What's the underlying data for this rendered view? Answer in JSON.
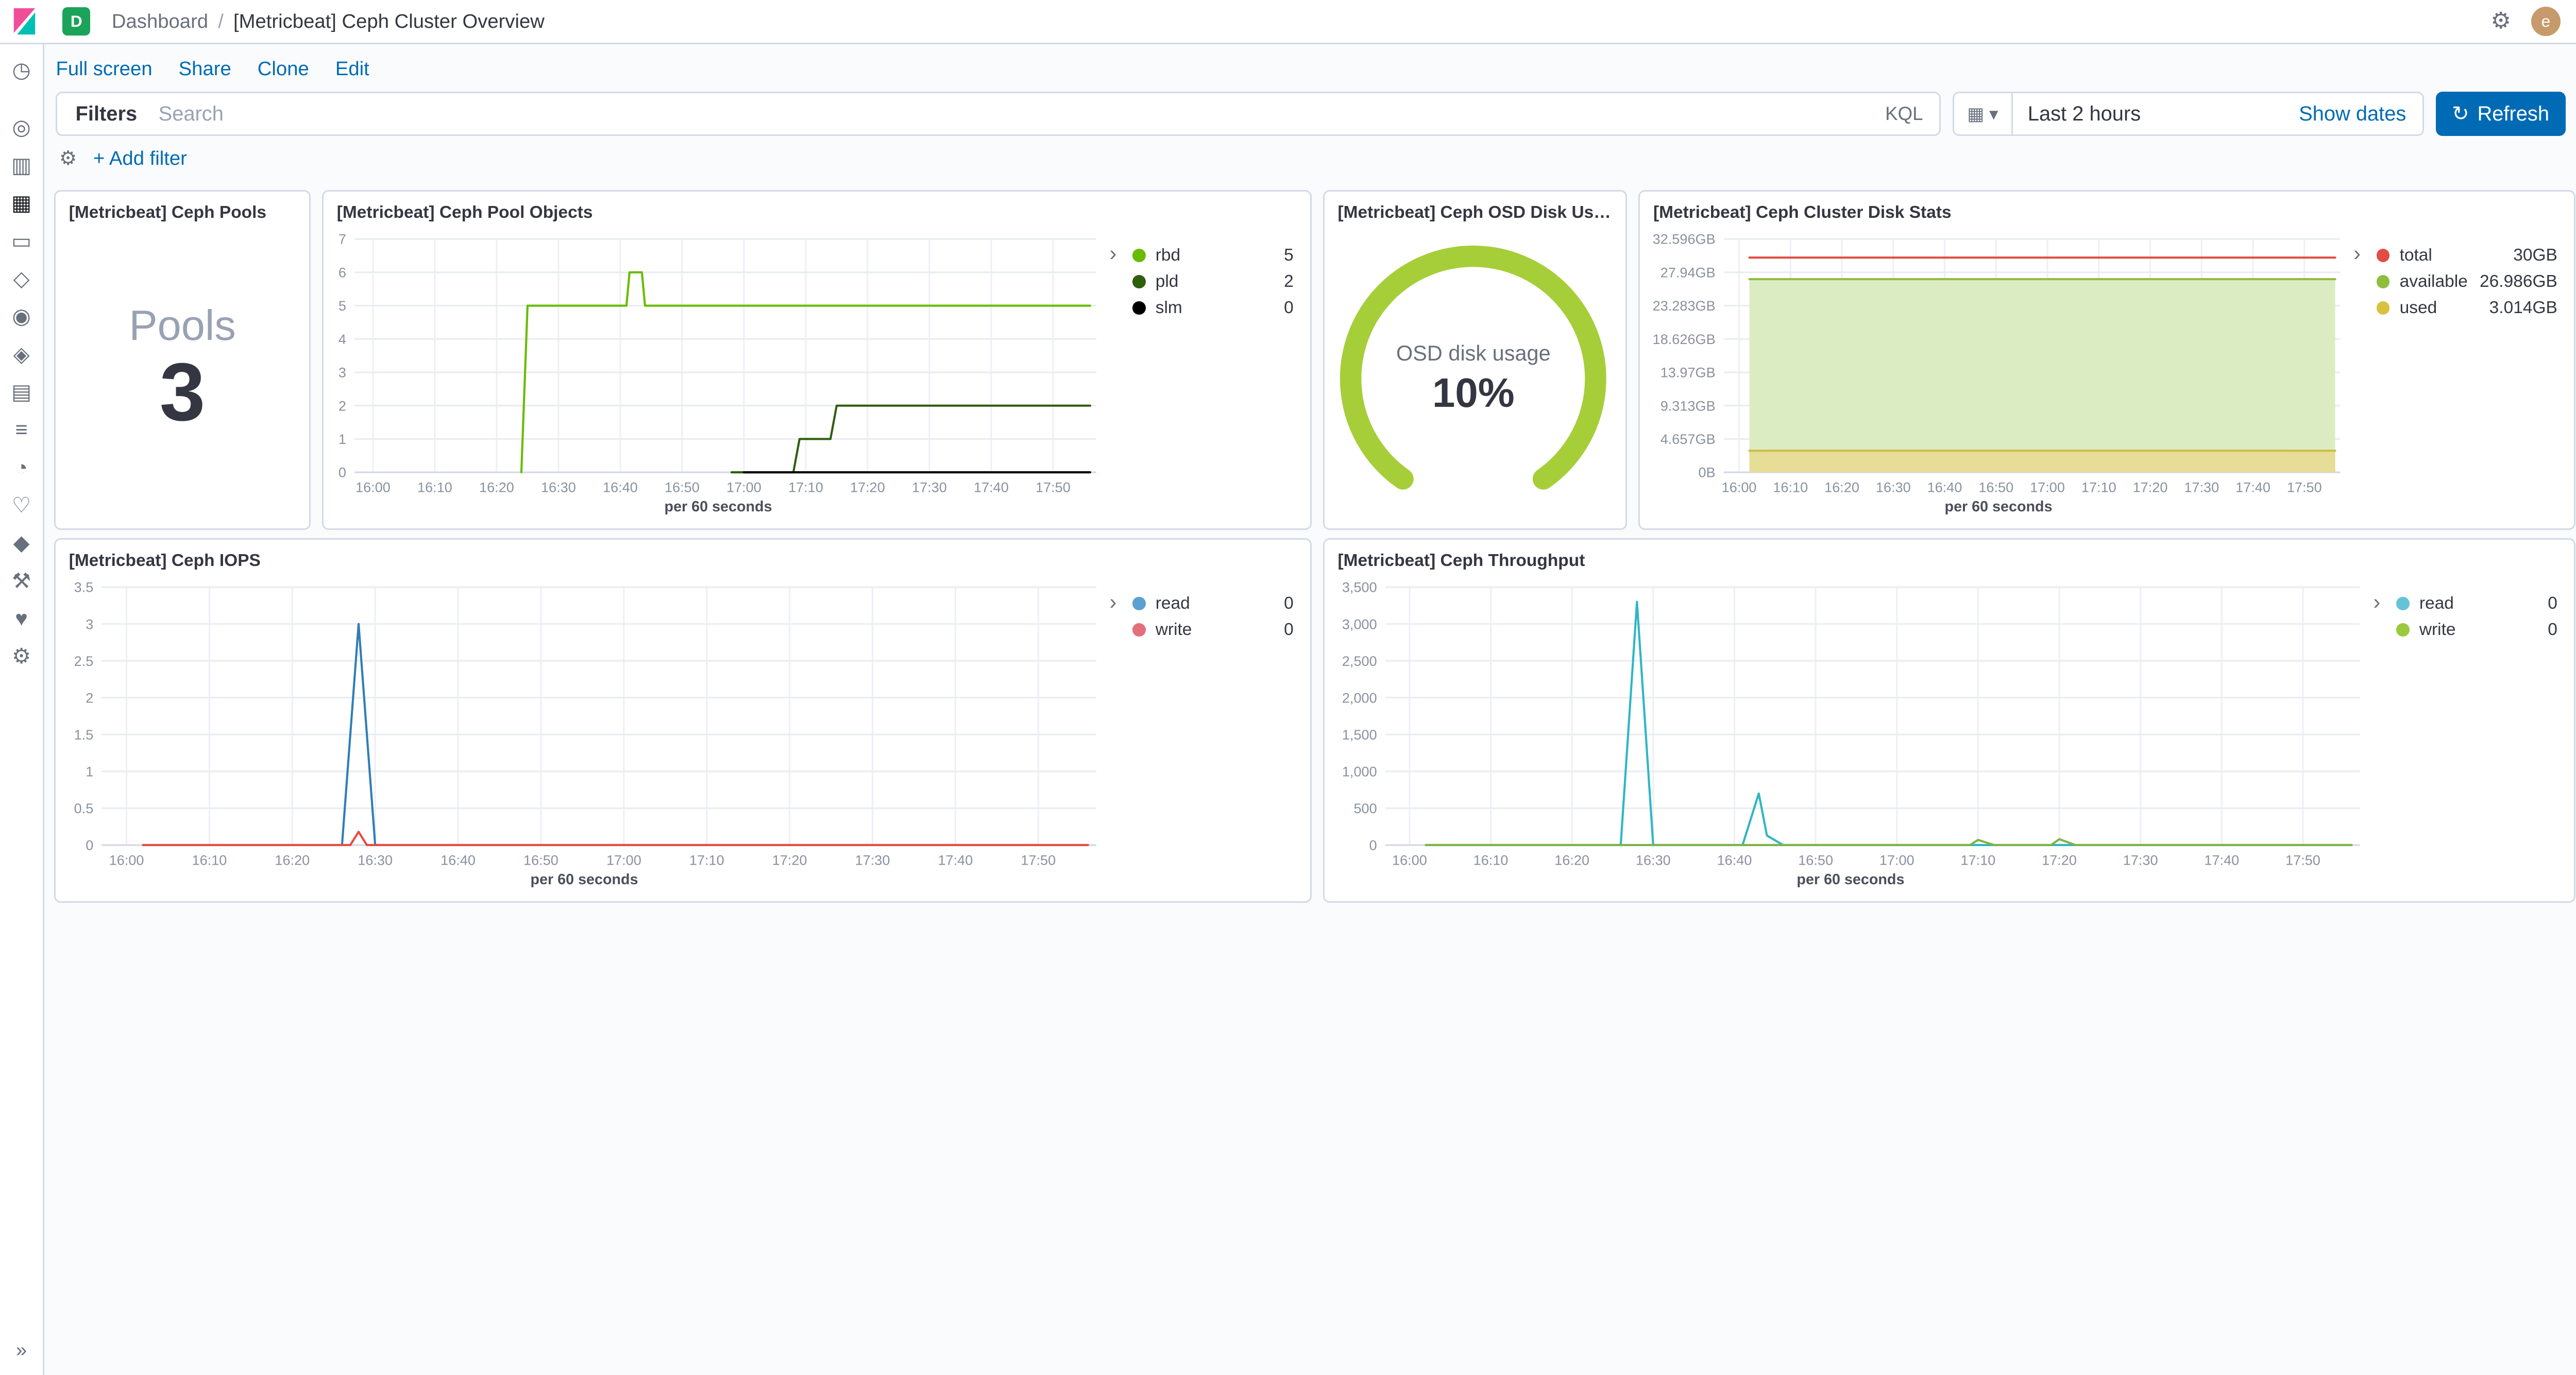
{
  "header": {
    "space_badge": "D",
    "breadcrumb": "Dashboard",
    "separator": "/",
    "title": "[Metricbeat] Ceph Cluster Overview",
    "avatar_initial": "e"
  },
  "toolbar": {
    "links": [
      "Full screen",
      "Share",
      "Clone",
      "Edit"
    ]
  },
  "filter_bar": {
    "filters_label": "Filters",
    "search_placeholder": "Search",
    "search_value": "",
    "kql_label": "KQL",
    "time_range": "Last 2 hours",
    "show_dates_label": "Show dates",
    "refresh_label": "Refresh",
    "add_filter_label": "+ Add filter"
  },
  "icons": {
    "gear": "⚙",
    "calendar": "▦",
    "caret": "▾",
    "refresh": "↻",
    "chevron": "›"
  },
  "colors": {
    "link": "#006BB4",
    "primary_button": "#006BB4",
    "space_badge": "#1BA35A",
    "panel_border": "#D3DAE6"
  },
  "sidebar": {
    "collapse_glyph": "»",
    "items": [
      {
        "name": "recent",
        "glyph": "◷"
      },
      {
        "name": "discover",
        "glyph": "◎",
        "gap": true
      },
      {
        "name": "visualize",
        "glyph": "▥"
      },
      {
        "name": "dashboard",
        "glyph": "▦",
        "active": true
      },
      {
        "name": "canvas",
        "glyph": "▭"
      },
      {
        "name": "maps",
        "glyph": "◇"
      },
      {
        "name": "machine-learning",
        "glyph": "◉"
      },
      {
        "name": "graph",
        "glyph": "◈"
      },
      {
        "name": "infrastructure",
        "glyph": "▤"
      },
      {
        "name": "logs",
        "glyph": "≡"
      },
      {
        "name": "apm",
        "glyph": "◔"
      },
      {
        "name": "uptime",
        "glyph": "♡"
      },
      {
        "name": "siem",
        "glyph": "◆"
      },
      {
        "name": "dev-tools",
        "glyph": "⚒"
      },
      {
        "name": "monitoring",
        "glyph": "♥"
      },
      {
        "name": "management",
        "glyph": "⚙"
      }
    ]
  },
  "chart_data": [
    {
      "id": "pools",
      "type": "metric",
      "title": "[Metricbeat] Ceph Pools",
      "label": "Pools",
      "value": "3"
    },
    {
      "id": "pool-objects",
      "type": "line",
      "title": "[Metricbeat] Ceph Pool Objects",
      "xlabel": "per 60 seconds",
      "x_domain": [
        -3,
        117
      ],
      "x_tick_vals": [
        0,
        10,
        20,
        30,
        40,
        50,
        60,
        70,
        80,
        90,
        100,
        110
      ],
      "x_tick_labels": [
        "16:00",
        "16:10",
        "16:20",
        "16:30",
        "16:40",
        "16:50",
        "17:00",
        "17:10",
        "17:20",
        "17:30",
        "17:40",
        "17:50"
      ],
      "ylim": [
        0,
        7
      ],
      "y_tick_vals": [
        0,
        1,
        2,
        3,
        4,
        5,
        6,
        7
      ],
      "y_tick_labels": [
        "0",
        "1",
        "2",
        "3",
        "4",
        "5",
        "6",
        "7"
      ],
      "series": [
        {
          "name": "rbd",
          "color": "#68BC00",
          "values": [
            [
              24,
              0
            ],
            [
              25,
              5
            ],
            [
              41,
              5
            ],
            [
              41.5,
              6
            ],
            [
              43.5,
              6
            ],
            [
              44,
              5
            ],
            [
              116,
              5
            ]
          ]
        },
        {
          "name": "pld",
          "color": "#2F5E0F",
          "values": [
            [
              58,
              0
            ],
            [
              68,
              0
            ],
            [
              69,
              1
            ],
            [
              74,
              1
            ],
            [
              75,
              2
            ],
            [
              116,
              2
            ]
          ]
        },
        {
          "name": "slm",
          "color": "#000000",
          "values": [
            [
              60,
              0
            ],
            [
              116,
              0
            ]
          ]
        }
      ],
      "legend": [
        {
          "label": "rbd",
          "value": "5",
          "color": "#68BC00"
        },
        {
          "label": "pld",
          "value": "2",
          "color": "#2F5E0F"
        },
        {
          "label": "slm",
          "value": "0",
          "color": "#000000"
        }
      ]
    },
    {
      "id": "osd-disk-usage",
      "type": "gauge",
      "title": "[Metricbeat] Ceph OSD Disk Usage",
      "label": "OSD disk usage",
      "value": "10%",
      "percent": 10,
      "arc_color": "#A6CE39"
    },
    {
      "id": "cluster-disk-stats",
      "type": "area",
      "title": "[Metricbeat] Ceph Cluster Disk Stats",
      "xlabel": "per 60 seconds",
      "x_domain": [
        -3,
        117
      ],
      "x_tick_vals": [
        0,
        10,
        20,
        30,
        40,
        50,
        60,
        70,
        80,
        90,
        100,
        110
      ],
      "x_tick_labels": [
        "16:00",
        "16:10",
        "16:20",
        "16:30",
        "16:40",
        "16:50",
        "17:00",
        "17:10",
        "17:20",
        "17:30",
        "17:40",
        "17:50"
      ],
      "ylim": [
        0,
        32.596
      ],
      "y_tick_vals": [
        0,
        4.657,
        9.313,
        13.97,
        18.626,
        23.283,
        27.94,
        32.596
      ],
      "y_tick_labels": [
        "0B",
        "4.657GB",
        "9.313GB",
        "13.97GB",
        "18.626GB",
        "23.283GB",
        "27.94GB",
        "32.596GB"
      ],
      "series": [
        {
          "name": "available",
          "color": "#8FBE3F",
          "fill": "#DCECC2",
          "values": [
            [
              2,
              26.986
            ],
            [
              116,
              26.986
            ]
          ]
        },
        {
          "name": "used",
          "color": "#CDBD4A",
          "fill": "#E6DD96",
          "values": [
            [
              2,
              3.014
            ],
            [
              116,
              3.014
            ]
          ]
        },
        {
          "name": "total",
          "color": "#E24D42",
          "values": [
            [
              2,
              30
            ],
            [
              116,
              30
            ]
          ]
        }
      ],
      "legend": [
        {
          "label": "total",
          "value": "30GB",
          "color": "#E24D42"
        },
        {
          "label": "available",
          "value": "26.986GB",
          "color": "#8FBE3F"
        },
        {
          "label": "used",
          "value": "3.014GB",
          "color": "#D9C13F"
        }
      ]
    },
    {
      "id": "iops",
      "type": "line",
      "title": "[Metricbeat] Ceph IOPS",
      "xlabel": "per 60 seconds",
      "x_domain": [
        -3,
        117
      ],
      "x_tick_vals": [
        0,
        10,
        20,
        30,
        40,
        50,
        60,
        70,
        80,
        90,
        100,
        110
      ],
      "x_tick_labels": [
        "16:00",
        "16:10",
        "16:20",
        "16:30",
        "16:40",
        "16:50",
        "17:00",
        "17:10",
        "17:20",
        "17:30",
        "17:40",
        "17:50"
      ],
      "ylim": [
        0,
        3.5
      ],
      "y_tick_vals": [
        0,
        0.5,
        1,
        1.5,
        2,
        2.5,
        3,
        3.5
      ],
      "y_tick_labels": [
        "0",
        "0.5",
        "1",
        "1.5",
        "2",
        "2.5",
        "3",
        "3.5"
      ],
      "series": [
        {
          "name": "read",
          "color": "#2F7EB8",
          "values": [
            [
              2,
              0
            ],
            [
              26,
              0
            ],
            [
              28,
              3
            ],
            [
              30,
              0
            ],
            [
              116,
              0
            ]
          ]
        },
        {
          "name": "write",
          "color": "#E24D42",
          "values": [
            [
              2,
              0
            ],
            [
              27,
              0
            ],
            [
              28,
              0.18
            ],
            [
              29,
              0
            ],
            [
              116,
              0
            ]
          ]
        }
      ],
      "legend": [
        {
          "label": "read",
          "value": "0",
          "color": "#5BA0D0"
        },
        {
          "label": "write",
          "value": "0",
          "color": "#E2707B"
        }
      ]
    },
    {
      "id": "throughput",
      "type": "line",
      "title": "[Metricbeat] Ceph Throughput",
      "xlabel": "per 60 seconds",
      "x_domain": [
        -3,
        117
      ],
      "x_tick_vals": [
        0,
        10,
        20,
        30,
        40,
        50,
        60,
        70,
        80,
        90,
        100,
        110
      ],
      "x_tick_labels": [
        "16:00",
        "16:10",
        "16:20",
        "16:30",
        "16:40",
        "16:50",
        "17:00",
        "17:10",
        "17:20",
        "17:30",
        "17:40",
        "17:50"
      ],
      "ylim": [
        0,
        3500
      ],
      "y_tick_vals": [
        0,
        500,
        1000,
        1500,
        2000,
        2500,
        3000,
        3500
      ],
      "y_tick_labels": [
        "0",
        "500",
        "1,000",
        "1,500",
        "2,000",
        "2,500",
        "3,000",
        "3,500"
      ],
      "series": [
        {
          "name": "read",
          "color": "#2FB6C5",
          "values": [
            [
              2,
              0
            ],
            [
              26,
              0
            ],
            [
              28,
              3300
            ],
            [
              30,
              0
            ],
            [
              41,
              0
            ],
            [
              43,
              700
            ],
            [
              44,
              130
            ],
            [
              46,
              0
            ],
            [
              116,
              0
            ]
          ]
        },
        {
          "name": "write",
          "color": "#7DB345",
          "values": [
            [
              2,
              0
            ],
            [
              69,
              0
            ],
            [
              70,
              70
            ],
            [
              72,
              0
            ],
            [
              79,
              0
            ],
            [
              80,
              80
            ],
            [
              82,
              0
            ],
            [
              116,
              0
            ]
          ]
        }
      ],
      "legend": [
        {
          "label": "read",
          "value": "0",
          "color": "#63C4D8"
        },
        {
          "label": "write",
          "value": "0",
          "color": "#9BCA3E"
        }
      ]
    }
  ]
}
